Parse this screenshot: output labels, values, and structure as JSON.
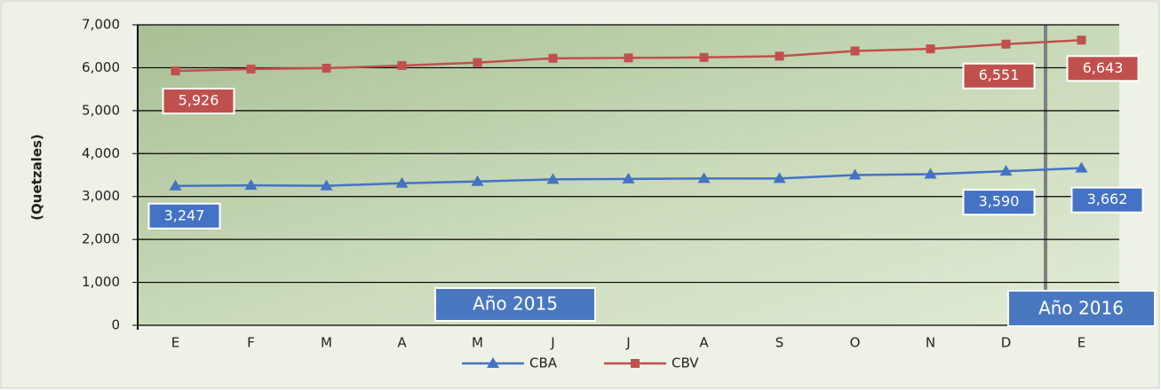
{
  "chart_data": {
    "type": "line",
    "y_label": "(Quetzales)",
    "categories": [
      "E",
      "F",
      "M",
      "A",
      "M",
      "J",
      "J",
      "A",
      "S",
      "O",
      "N",
      "D",
      "E"
    ],
    "series": [
      {
        "name": "CBA",
        "color": "#4472c4",
        "marker": "triangle",
        "values": [
          3247,
          3260,
          3250,
          3310,
          3350,
          3400,
          3410,
          3420,
          3420,
          3500,
          3520,
          3590,
          3662
        ],
        "value_labels": [
          "3,247",
          null,
          null,
          null,
          null,
          null,
          null,
          null,
          null,
          null,
          null,
          "3,590",
          "3,662"
        ]
      },
      {
        "name": "CBV",
        "color": "#c0504d",
        "marker": "square",
        "values": [
          5926,
          5970,
          5990,
          6050,
          6120,
          6220,
          6230,
          6240,
          6270,
          6390,
          6440,
          6551,
          6643
        ],
        "value_labels": [
          "5,926",
          null,
          null,
          null,
          null,
          null,
          null,
          null,
          null,
          null,
          null,
          "6,551",
          "6,643"
        ]
      }
    ],
    "ylim": [
      0,
      7000
    ],
    "yticks": [
      0,
      {
        "value": 1000,
        "label": "1,000"
      },
      {
        "value": 2000,
        "label": "2,000"
      },
      {
        "value": 3000,
        "label": "3,000"
      },
      {
        "value": 4000,
        "label": "4,000"
      },
      {
        "value": 5000,
        "label": "5,000"
      },
      {
        "value": 6000,
        "label": "6,000"
      },
      {
        "value": 7000,
        "label": "7,000"
      }
    ],
    "grid": true,
    "annotations": [
      "Año 2015",
      "Año 2016"
    ]
  }
}
